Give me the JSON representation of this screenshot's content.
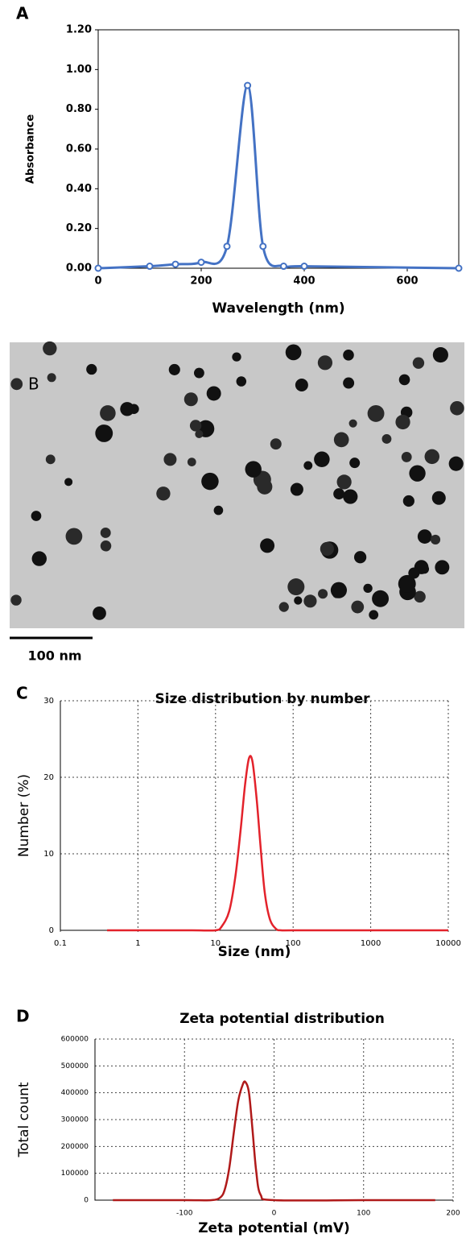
{
  "chart_data": [
    {
      "type": "line",
      "label": "A",
      "xlabel": "Wavelength (nm)",
      "ylabel": "Absorbance",
      "x": [
        0,
        100,
        150,
        200,
        250,
        290,
        320,
        360,
        400,
        700
      ],
      "series": [
        {
          "color": "#4472c4",
          "values": [
            0,
            0.01,
            0.02,
            0.03,
            0.11,
            0.92,
            0.11,
            0.01,
            0.01,
            0
          ]
        }
      ],
      "xlim": [
        0,
        700
      ],
      "xticks": [
        0,
        200,
        400,
        600
      ],
      "ylim": [
        0,
        1.2
      ],
      "yticks": [
        {
          "value": 0,
          "label": "0.00"
        },
        {
          "value": 0.2,
          "label": "0.20"
        },
        {
          "value": 0.4,
          "label": "0.40"
        },
        {
          "value": 0.6,
          "label": "0.60"
        },
        {
          "value": 0.8,
          "label": "0.80"
        },
        {
          "value": 1.0,
          "label": "1.00"
        },
        {
          "value": 1.2,
          "label": "1.20"
        }
      ],
      "markers": true,
      "grid": false
    },
    {
      "type": "line",
      "label": "C",
      "title": "Size distribution by number",
      "xlabel": "Size (nm)",
      "ylabel": "Number (%)",
      "x": [
        0.4,
        1,
        5,
        10,
        12,
        15,
        18,
        21,
        24,
        27,
        30,
        34,
        38,
        43,
        50,
        60,
        70,
        100,
        1000,
        10000
      ],
      "series": [
        {
          "color": "#e3222b",
          "values": [
            0,
            0,
            0,
            0,
            0.5,
            2.5,
            7,
            13,
            19,
            22.5,
            22,
            17,
            11,
            5,
            1.5,
            0.2,
            0,
            0,
            0,
            0
          ]
        }
      ],
      "xscale": "log",
      "xlim": [
        0.1,
        10000
      ],
      "xticks": [
        0.1,
        1,
        10,
        100,
        1000,
        10000
      ],
      "ylim": [
        0,
        30
      ],
      "yticks": [
        0,
        10,
        20,
        30
      ],
      "grid": true
    },
    {
      "type": "line",
      "label": "D",
      "title": "Zeta potential distribution",
      "xlabel": "Zeta potential (mV)",
      "ylabel": "Total count",
      "x": [
        -180,
        -100,
        -70,
        -60,
        -55,
        -50,
        -45,
        -40,
        -35,
        -32,
        -28,
        -24,
        -20,
        -15,
        0,
        100,
        180
      ],
      "series": [
        {
          "color": "#b01a1a",
          "values": [
            0,
            0,
            0,
            10000,
            40000,
            120000,
            250000,
            370000,
            430000,
            440000,
            400000,
            260000,
            110000,
            20000,
            0,
            0,
            0
          ]
        }
      ],
      "xlim": [
        -200,
        200
      ],
      "xticks": [
        -100,
        0,
        100,
        200
      ],
      "ylim": [
        0,
        600000
      ],
      "yticks": [
        0,
        100000,
        200000,
        300000,
        400000,
        500000,
        600000
      ],
      "grid": true
    }
  ],
  "image_panel": {
    "label": "B",
    "scale_bar": "100 nm"
  }
}
